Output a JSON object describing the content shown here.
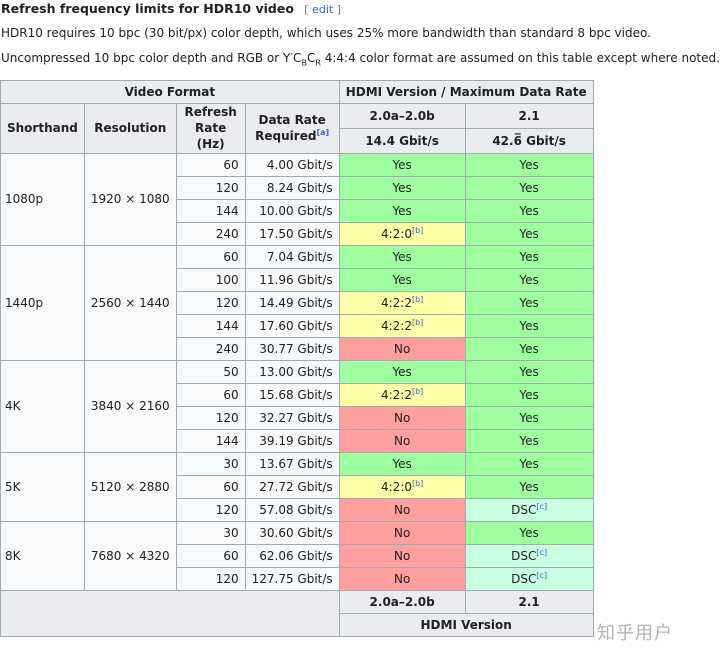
{
  "heading": {
    "title": "Refresh frequency limits for HDR10 video",
    "edit_open": "[",
    "edit_label": "edit",
    "edit_close": "]"
  },
  "para1": "HDR10 requires 10 bpc (30 bit/px) color depth, which uses 25% more bandwidth than standard 8 bpc video.",
  "para2": {
    "before": "Uncompressed 10 bpc color depth and RGB or Y′C",
    "b": "B",
    "c": "C",
    "r": "R",
    "after": " 4:4:4 color format are assumed on this table except where noted."
  },
  "table": {
    "video_format": "Video Format",
    "hdmi_header": "HDMI Version / Maximum Data Rate",
    "col_shorthand": "Shorthand",
    "col_resolution": "Resolution",
    "col_refresh": "Refresh Rate (Hz)",
    "col_datarate": "Data Rate Required",
    "datarate_note": "[a]",
    "ver1": "2.0a–2.0b",
    "ver2": "2.1",
    "rate1": "14.4 Gbit/s",
    "rate2": "42.6̅ Gbit/s",
    "footer_ver1": "2.0a–2.0b",
    "footer_ver2": "2.1",
    "footer_label": "HDMI Version",
    "groups": [
      {
        "shorthand": "1080p",
        "resolution": "1920 × 1080",
        "rows": [
          {
            "hz": "60",
            "rate": "4.00 Gbit/s",
            "v1": "Yes",
            "v1_type": "yes",
            "v2": "Yes",
            "v2_type": "yes"
          },
          {
            "hz": "120",
            "rate": "8.24 Gbit/s",
            "v1": "Yes",
            "v1_type": "yes",
            "v2": "Yes",
            "v2_type": "yes"
          },
          {
            "hz": "144",
            "rate": "10.00 Gbit/s",
            "v1": "Yes",
            "v1_type": "yes",
            "v2": "Yes",
            "v2_type": "yes"
          },
          {
            "hz": "240",
            "rate": "17.50 Gbit/s",
            "v1": "4:2:0",
            "v1_note": "[b]",
            "v1_type": "part",
            "v2": "Yes",
            "v2_type": "yes"
          }
        ]
      },
      {
        "shorthand": "1440p",
        "resolution": "2560 × 1440",
        "rows": [
          {
            "hz": "60",
            "rate": "7.04 Gbit/s",
            "v1": "Yes",
            "v1_type": "yes",
            "v2": "Yes",
            "v2_type": "yes"
          },
          {
            "hz": "100",
            "rate": "11.96 Gbit/s",
            "v1": "Yes",
            "v1_type": "yes",
            "v2": "Yes",
            "v2_type": "yes"
          },
          {
            "hz": "120",
            "rate": "14.49 Gbit/s",
            "v1": "4:2:2",
            "v1_note": "[b]",
            "v1_type": "part",
            "v2": "Yes",
            "v2_type": "yes"
          },
          {
            "hz": "144",
            "rate": "17.60 Gbit/s",
            "v1": "4:2:2",
            "v1_note": "[b]",
            "v1_type": "part",
            "v2": "Yes",
            "v2_type": "yes"
          },
          {
            "hz": "240",
            "rate": "30.77 Gbit/s",
            "v1": "No",
            "v1_type": "no",
            "v2": "Yes",
            "v2_type": "yes"
          }
        ]
      },
      {
        "shorthand": "4K",
        "resolution": "3840 × 2160",
        "rows": [
          {
            "hz": "50",
            "rate": "13.00 Gbit/s",
            "v1": "Yes",
            "v1_type": "yes",
            "v2": "Yes",
            "v2_type": "yes"
          },
          {
            "hz": "60",
            "rate": "15.68 Gbit/s",
            "v1": "4:2:2",
            "v1_note": "[b]",
            "v1_type": "part",
            "v2": "Yes",
            "v2_type": "yes"
          },
          {
            "hz": "120",
            "rate": "32.27 Gbit/s",
            "v1": "No",
            "v1_type": "no",
            "v2": "Yes",
            "v2_type": "yes"
          },
          {
            "hz": "144",
            "rate": "39.19 Gbit/s",
            "v1": "No",
            "v1_type": "no",
            "v2": "Yes",
            "v2_type": "yes"
          }
        ]
      },
      {
        "shorthand": "5K",
        "resolution": "5120 × 2880",
        "rows": [
          {
            "hz": "30",
            "rate": "13.67 Gbit/s",
            "v1": "Yes",
            "v1_type": "yes",
            "v2": "Yes",
            "v2_type": "yes"
          },
          {
            "hz": "60",
            "rate": "27.72 Gbit/s",
            "v1": "4:2:0",
            "v1_note": "[b]",
            "v1_type": "part",
            "v2": "Yes",
            "v2_type": "yes"
          },
          {
            "hz": "120",
            "rate": "57.08 Gbit/s",
            "v1": "No",
            "v1_type": "no",
            "v2": "DSC",
            "v2_note": "[c]",
            "v2_type": "dsc"
          }
        ]
      },
      {
        "shorthand": "8K",
        "resolution": "7680 × 4320",
        "rows": [
          {
            "hz": "30",
            "rate": "30.60 Gbit/s",
            "v1": "No",
            "v1_type": "no",
            "v2": "Yes",
            "v2_type": "yes"
          },
          {
            "hz": "60",
            "rate": "62.06 Gbit/s",
            "v1": "No",
            "v1_type": "no",
            "v2": "DSC",
            "v2_note": "[c]",
            "v2_type": "dsc"
          },
          {
            "hz": "120",
            "rate": "127.75 Gbit/s",
            "v1": "No",
            "v1_type": "no",
            "v2": "DSC",
            "v2_note": "[c]",
            "v2_type": "dsc"
          }
        ]
      }
    ]
  },
  "colors": {
    "yes": "#9eff9e",
    "no": "#ff9f9f",
    "partial": "#ffffa8",
    "dsc": "#c8ffe0",
    "header": "#eaecf0",
    "link": "#3366cc"
  },
  "watermark": "知乎用户"
}
